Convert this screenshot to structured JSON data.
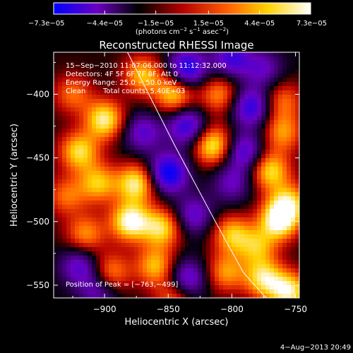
{
  "chart_data": {
    "type": "heatmap",
    "title": "Reconstructed RHESSI Image",
    "xlabel": "Heliocentric X (arcsec)",
    "ylabel": "Heliocentric Y (arcsec)",
    "xlim": [
      -940,
      -747
    ],
    "ylim": [
      -560,
      -367
    ],
    "x_ticks": [
      -900,
      -850,
      -800,
      -750
    ],
    "y_ticks": [
      -400,
      -450,
      -500,
      -550
    ],
    "x_tick_labels": [
      "−900",
      "−850",
      "−800",
      "−750"
    ],
    "y_tick_labels": [
      "−400",
      "−450",
      "−500",
      "−550"
    ],
    "colorbar": {
      "min": -7.3e-05,
      "max": 7.3e-05,
      "tick_values": [
        -7.3e-05,
        -4.4e-05,
        -1.5e-05,
        1.5e-05,
        4.4e-05,
        7.3e-05
      ],
      "tick_labels": [
        "−7.3e−05",
        "−4.4e−05",
        "−1.5e−05",
        "1.5e−05",
        "4.4e−05",
        "7.3e−05"
      ],
      "unit_main": "(photons cm",
      "unit_exp1": "−2",
      "unit_mid": " s",
      "unit_exp2": "−1",
      "unit_tail": " asec",
      "unit_exp3": "−2",
      "unit_close": ")",
      "colors": [
        "#0000ff",
        "#6a00c0",
        "#000000",
        "#b40000",
        "#ff5a00",
        "#ffd200",
        "#ffffff"
      ]
    },
    "annotations": {
      "time_range": "15−Sep−2010 11:07:06.000 to 11:12:32.000",
      "detectors": "Detectors: 4F 5F 6F 7F 8F, Att 0",
      "energy_range": "Energy Range: 25.0 − 50.0 keV",
      "clean": "Clean",
      "total_counts": "Total counts: 5.40E+03",
      "peak": "Position of Peak = [−763,−499]"
    },
    "peak_position": [
      -763,
      -499
    ],
    "limb_curve": [
      [
        -882,
        -367
      ],
      [
        -845,
        -440
      ],
      [
        -813,
        -500
      ],
      [
        -791,
        -540
      ],
      [
        -773,
        -560
      ]
    ],
    "blobs": [
      {
        "x": -870,
        "y": -385,
        "v": 0.7
      },
      {
        "x": -835,
        "y": -380,
        "v": -0.9
      },
      {
        "x": -800,
        "y": -372,
        "v": -0.7
      },
      {
        "x": -775,
        "y": -380,
        "v": -0.5
      },
      {
        "x": -845,
        "y": -400,
        "v": 0.8
      },
      {
        "x": -810,
        "y": -400,
        "v": 0.6
      },
      {
        "x": -785,
        "y": -410,
        "v": -0.8
      },
      {
        "x": -925,
        "y": -400,
        "v": 0.5
      },
      {
        "x": -900,
        "y": -420,
        "v": 0.9
      },
      {
        "x": -920,
        "y": -445,
        "v": 0.8
      },
      {
        "x": -870,
        "y": -430,
        "v": -0.6
      },
      {
        "x": -835,
        "y": -425,
        "v": -0.8
      },
      {
        "x": -815,
        "y": -440,
        "v": 0.9
      },
      {
        "x": -790,
        "y": -445,
        "v": -0.7
      },
      {
        "x": -760,
        "y": -430,
        "v": 0.6
      },
      {
        "x": -760,
        "y": -405,
        "v": 0.5
      },
      {
        "x": -850,
        "y": -462,
        "v": -1.0
      },
      {
        "x": -875,
        "y": -470,
        "v": 0.9
      },
      {
        "x": -905,
        "y": -470,
        "v": 0.7
      },
      {
        "x": -930,
        "y": -480,
        "v": 0.5
      },
      {
        "x": -800,
        "y": -470,
        "v": -0.5
      },
      {
        "x": -770,
        "y": -460,
        "v": 0.8
      },
      {
        "x": -755,
        "y": -485,
        "v": 0.7
      },
      {
        "x": -880,
        "y": -500,
        "v": 1.0
      },
      {
        "x": -855,
        "y": -505,
        "v": 0.8
      },
      {
        "x": -915,
        "y": -510,
        "v": 0.6
      },
      {
        "x": -830,
        "y": -495,
        "v": -0.6
      },
      {
        "x": -800,
        "y": -510,
        "v": 0.7
      },
      {
        "x": -763,
        "y": -499,
        "v": 1.0
      },
      {
        "x": -780,
        "y": -520,
        "v": 0.6
      },
      {
        "x": -920,
        "y": -535,
        "v": -0.6
      },
      {
        "x": -895,
        "y": -540,
        "v": 0.6
      },
      {
        "x": -860,
        "y": -535,
        "v": 0.7
      },
      {
        "x": -835,
        "y": -545,
        "v": -0.7
      },
      {
        "x": -805,
        "y": -540,
        "v": 0.6
      },
      {
        "x": -775,
        "y": -545,
        "v": 0.8
      },
      {
        "x": -755,
        "y": -555,
        "v": 0.9
      },
      {
        "x": -905,
        "y": -555,
        "v": -0.5
      },
      {
        "x": -845,
        "y": -560,
        "v": 0.5
      }
    ]
  },
  "footer": {
    "date": "4−Aug−2013 20:49"
  }
}
